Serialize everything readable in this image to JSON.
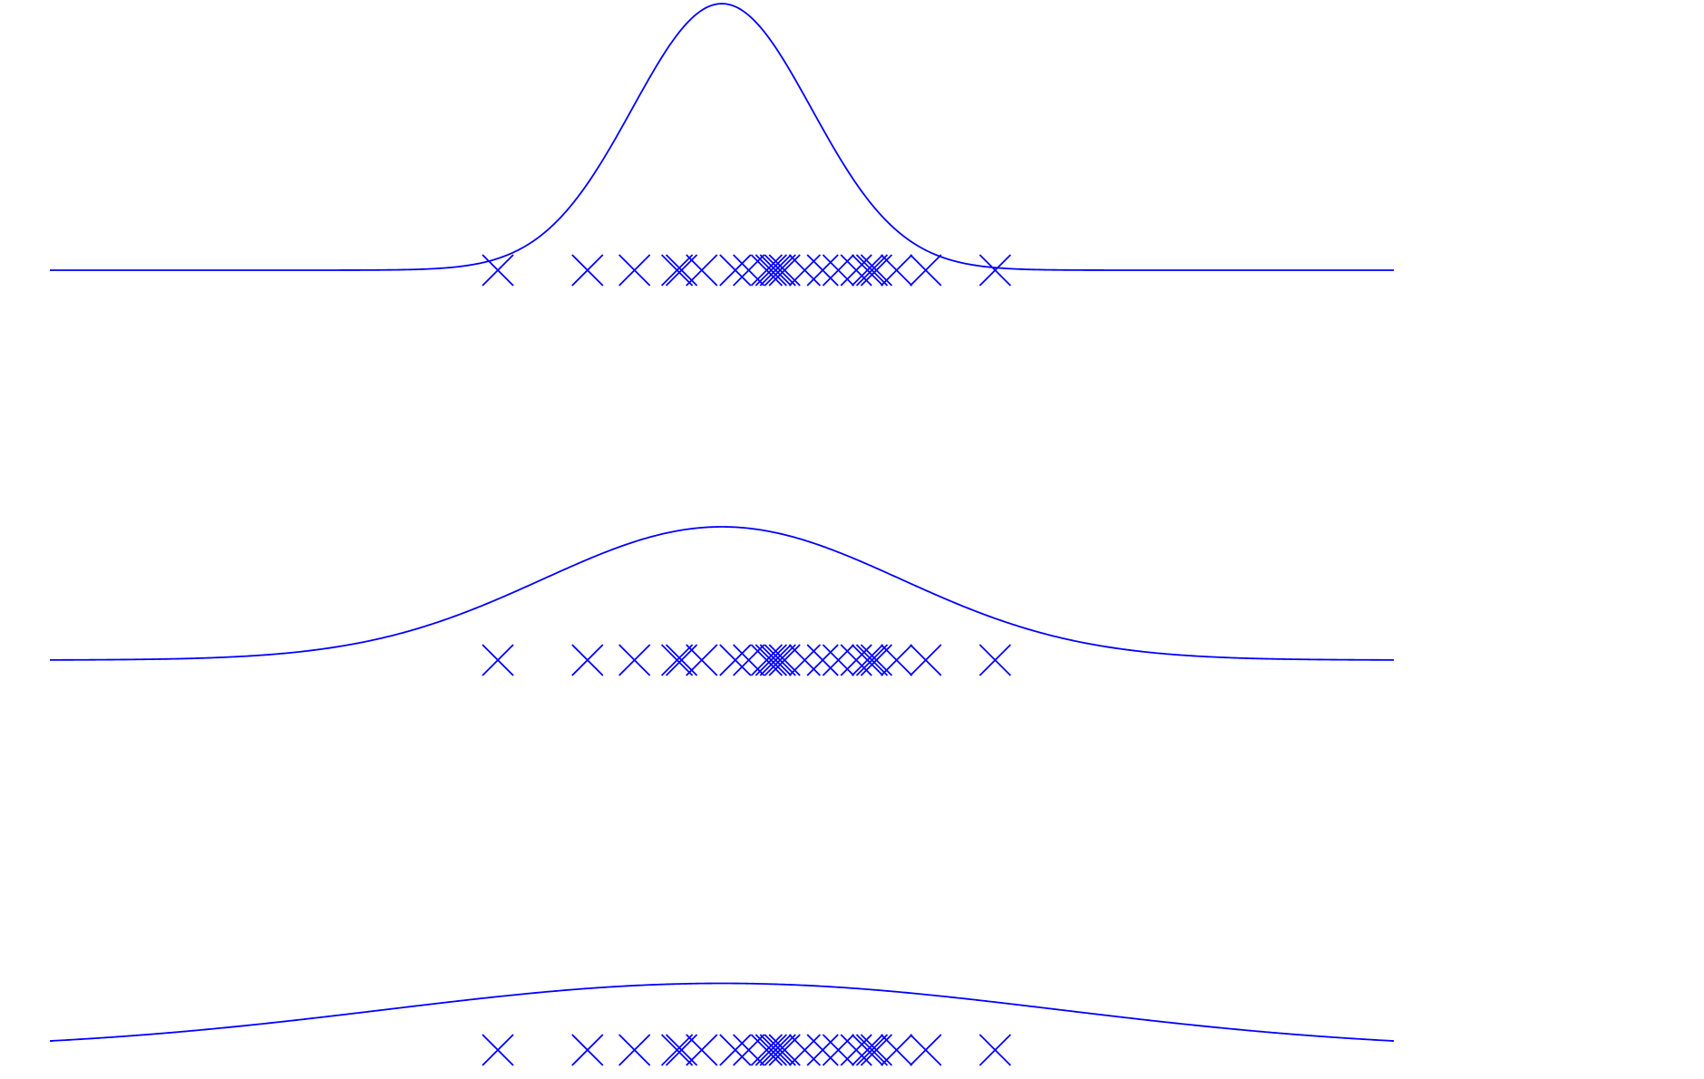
{
  "chart_data": [
    {
      "type": "line",
      "title": "",
      "xlabel": "",
      "ylabel": "",
      "grid": false,
      "axes_visible": false,
      "xlim": [
        -3.0,
        3.0
      ],
      "ylim": [
        0,
        1.0
      ],
      "color": "#0000ff",
      "curve": {
        "mean": 0.0,
        "sd": 0.4,
        "peak": 1.0
      },
      "samples": [
        -1.0,
        -0.6,
        -0.39,
        -0.2,
        -0.18,
        -0.09,
        0.06,
        0.12,
        0.2,
        0.22,
        0.24,
        0.26,
        0.28,
        0.37,
        0.45,
        0.52,
        0.6,
        0.65,
        0.67,
        0.69,
        0.78,
        0.91,
        1.22
      ],
      "sample_marker": "x"
    },
    {
      "type": "line",
      "title": "",
      "xlabel": "",
      "ylabel": "",
      "grid": false,
      "axes_visible": false,
      "xlim": [
        -3.0,
        3.0
      ],
      "ylim": [
        0,
        1.0
      ],
      "color": "#0000ff",
      "curve": {
        "mean": 0.0,
        "sd": 0.8,
        "peak": 0.5
      },
      "samples": [
        -1.0,
        -0.6,
        -0.39,
        -0.2,
        -0.18,
        -0.09,
        0.06,
        0.12,
        0.2,
        0.22,
        0.24,
        0.26,
        0.28,
        0.37,
        0.45,
        0.52,
        0.6,
        0.65,
        0.67,
        0.69,
        0.78,
        0.91,
        1.22
      ],
      "sample_marker": "x"
    },
    {
      "type": "line",
      "title": "",
      "xlabel": "",
      "ylabel": "",
      "grid": false,
      "axes_visible": false,
      "xlim": [
        -3.0,
        3.0
      ],
      "ylim": [
        0,
        1.0
      ],
      "color": "#0000ff",
      "curve": {
        "mean": 0.0,
        "sd": 1.5,
        "peak": 0.25
      },
      "samples": [
        -1.0,
        -0.6,
        -0.39,
        -0.2,
        -0.18,
        -0.09,
        0.06,
        0.12,
        0.2,
        0.22,
        0.24,
        0.26,
        0.28,
        0.37,
        0.45,
        0.52,
        0.6,
        0.65,
        0.67,
        0.69,
        0.78,
        0.91,
        1.22
      ],
      "sample_marker": "x"
    }
  ]
}
